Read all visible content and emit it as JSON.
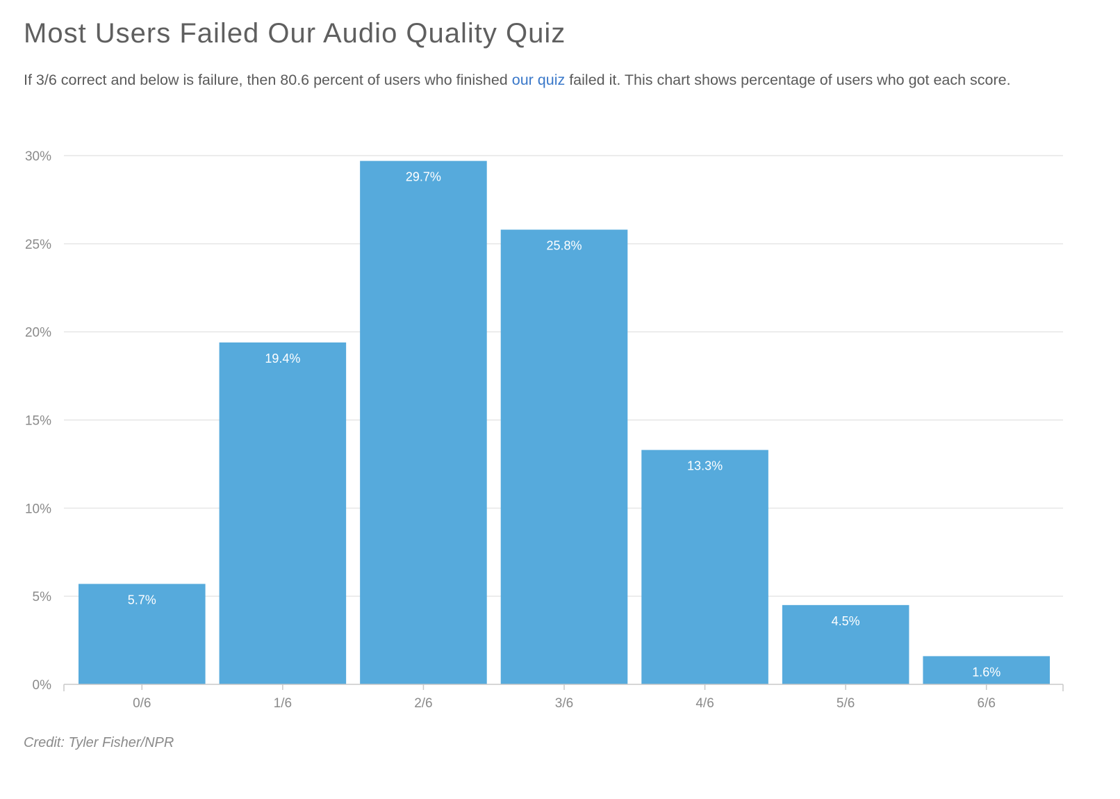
{
  "header": {
    "title": "Most Users Failed Our Audio Quality Quiz",
    "subtitle_before": "If 3/6 correct and below is failure, then 80.6 percent of users who finished ",
    "subtitle_link": "our quiz",
    "subtitle_after": " failed it. This chart shows percentage of users who got each score."
  },
  "footer": {
    "credit": "Credit: Tyler Fisher/NPR"
  },
  "colors": {
    "bar": "#56aadc",
    "gridline": "#e6e6e6",
    "axis_text": "#8a8a8a",
    "bar_label": "#ffffff",
    "link": "#3a78c9"
  },
  "chart_data": {
    "type": "bar",
    "categories": [
      "0/6",
      "1/6",
      "2/6",
      "3/6",
      "4/6",
      "5/6",
      "6/6"
    ],
    "values": [
      5.7,
      19.4,
      29.7,
      25.8,
      13.3,
      4.5,
      1.6
    ],
    "value_labels": [
      "5.7%",
      "19.4%",
      "29.7%",
      "25.8%",
      "13.3%",
      "4.5%",
      "1.6%"
    ],
    "yticks": [
      0,
      5,
      10,
      15,
      20,
      25,
      30
    ],
    "ytick_labels": [
      "0%",
      "5%",
      "10%",
      "15%",
      "20%",
      "25%",
      "30%"
    ],
    "ylim": [
      0,
      30
    ],
    "grid": true,
    "xlabel": "",
    "ylabel": ""
  }
}
